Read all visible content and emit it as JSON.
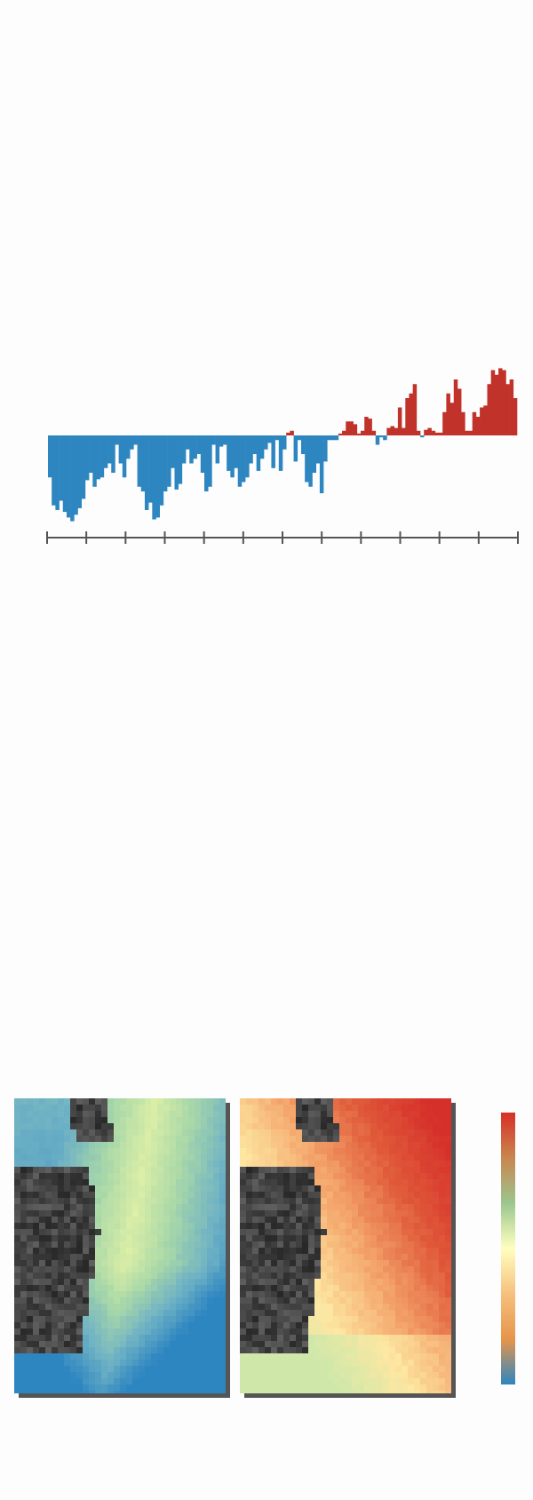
{
  "chart_data": {
    "type": "bar",
    "title": "",
    "xlabel": "",
    "ylabel": "",
    "ylim": [
      -1.0,
      0.8
    ],
    "x_ticks_count": 13,
    "colors": {
      "positive": "#c0322a",
      "negative": "#2e86c1",
      "axis": "#555555"
    },
    "values": [
      -0.45,
      -0.75,
      -0.8,
      -0.7,
      -0.82,
      -0.88,
      -0.92,
      -0.85,
      -0.78,
      -0.68,
      -0.48,
      -0.4,
      -0.55,
      -0.47,
      -0.45,
      -0.35,
      -0.3,
      -0.4,
      -0.1,
      -0.3,
      -0.45,
      -0.25,
      -0.15,
      -0.1,
      -0.55,
      -0.6,
      -0.8,
      -0.72,
      -0.9,
      -0.88,
      -0.75,
      -0.6,
      -0.55,
      -0.35,
      -0.58,
      -0.52,
      -0.3,
      -0.15,
      -0.3,
      -0.25,
      -0.2,
      -0.4,
      -0.6,
      -0.55,
      -0.1,
      -0.3,
      -0.12,
      -0.1,
      -0.38,
      -0.45,
      -0.35,
      -0.55,
      -0.5,
      -0.45,
      -0.3,
      -0.2,
      -0.38,
      -0.25,
      -0.15,
      -0.08,
      -0.35,
      -0.05,
      -0.38,
      -0.15,
      0.03,
      0.05,
      -0.28,
      -0.05,
      -0.2,
      -0.5,
      -0.55,
      -0.4,
      -0.3,
      -0.62,
      -0.28,
      -0.05,
      -0.05,
      -0.05,
      0.02,
      0.05,
      0.15,
      0.15,
      0.12,
      0.02,
      0.05,
      0.2,
      0.18,
      0.05,
      -0.1,
      -0.02,
      -0.05,
      0.08,
      0.1,
      0.08,
      0.3,
      0.08,
      0.4,
      0.45,
      0.55,
      0.05,
      -0.02,
      0.06,
      0.08,
      0.05,
      0.03,
      0.03,
      0.25,
      0.45,
      0.35,
      0.6,
      0.5,
      0.25,
      0.05,
      0.05,
      0.25,
      0.2,
      0.3,
      0.32,
      0.55,
      0.7,
      0.65,
      0.72,
      0.7,
      0.55,
      0.6,
      0.4
    ]
  },
  "maps": {
    "left": {
      "palette": [
        "#2e86c1",
        "#6fb2c4",
        "#a9d8a8",
        "#e2f1a6"
      ],
      "land_color": "#3a3a3a"
    },
    "right": {
      "palette": [
        "#cfe8a9",
        "#fde7a2",
        "#f4a56b",
        "#e05a3a",
        "#d6302a"
      ],
      "land_color": "#3a3a3a"
    }
  },
  "colorbar": {
    "stops": [
      "#d73027",
      "#c9864f",
      "#9cc68f",
      "#ffffbf",
      "#f6c07e",
      "#e6954b",
      "#2e86c1"
    ]
  }
}
